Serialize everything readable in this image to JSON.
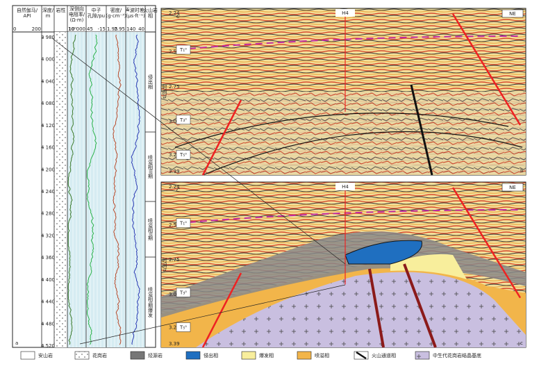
{
  "log_panel": {
    "columns": [
      {
        "lines": [
          "自然伽马/",
          "API"
        ],
        "scale": [
          "0",
          "200"
        ]
      },
      {
        "lines": [
          "深度/",
          "m"
        ]
      },
      {
        "lines": [
          "岩性"
        ]
      },
      {
        "lines": [
          "深侧向",
          "电阻率/",
          "(Ω·m)"
        ],
        "scale": [
          "10⁰",
          "10 000"
        ]
      },
      {
        "lines": [
          "中子",
          "孔隙/pu"
        ],
        "scale": [
          "45",
          "-15"
        ]
      },
      {
        "lines": [
          "密度/",
          "(g·cm⁻³)"
        ],
        "scale": [
          "1.95",
          "2.95"
        ]
      },
      {
        "lines": [
          "声波时差/",
          "(μs·ft⁻¹)"
        ],
        "scale": [
          "140",
          "40"
        ]
      },
      {
        "lines": [
          "火山岩",
          "相"
        ]
      }
    ],
    "depths": [
      "3 980",
      "4 000",
      "4 040",
      "4 080",
      "4 120",
      "4 160",
      "4 200",
      "4 240",
      "4 280",
      "4 320",
      "4 360",
      "4 400",
      "4 440",
      "4 480",
      "4 520"
    ],
    "facies": [
      "侵出相",
      "喷溢相III期",
      "喷溢相II期",
      "喷溢相I期爆发"
    ],
    "label": "a"
  },
  "seismic_panels": [
    {
      "label": "b",
      "well": "H4",
      "direction": "NE",
      "c_label": "C",
      "axis_title": "时间/s",
      "ticks": [
        "2.24",
        "2.50",
        "2.75",
        "3.00",
        "3.25",
        "3.39"
      ],
      "horizons": [
        "T₁⁰",
        "T₃⁰",
        "T₅⁰"
      ]
    },
    {
      "label": "c",
      "well": "H4",
      "direction": "NE",
      "c_label": "C",
      "axis_title": "时间/s",
      "ticks": [
        "2.24",
        "2.50",
        "2.75",
        "3.00",
        "3.25",
        "3.39"
      ],
      "horizons": [
        "T₁⁰",
        "T₃⁰",
        "T₅⁰"
      ]
    }
  ],
  "legend": [
    "安山岩",
    "花岗岩",
    "烃源岩",
    "侵出相",
    "爆发相",
    "喷溢相",
    "火山通道相",
    "中生代花岗岩结晶基底"
  ]
}
